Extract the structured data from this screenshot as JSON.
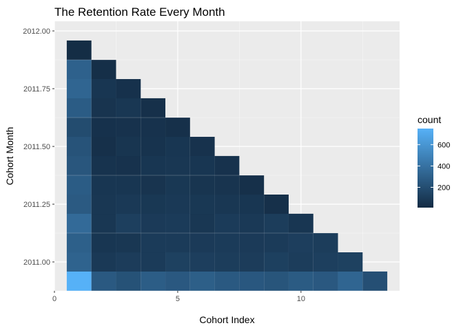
{
  "chart_data": {
    "type": "heatmap",
    "title": "The Retention Rate Every Month",
    "xlabel": "Cohort Index",
    "ylabel": "Cohort Month",
    "xlim": [
      0,
      14
    ],
    "ylim": [
      2010.875,
      2012.0417
    ],
    "x_ticks": [
      0,
      5,
      10
    ],
    "y_ticks": [
      "2011.00",
      "2011.25",
      "2011.50",
      "2011.75",
      "2012.00"
    ],
    "x_tick_values": [
      0,
      5,
      10
    ],
    "y_tick_values": [
      2011.0,
      2011.25,
      2011.5,
      2011.75,
      2012.0
    ],
    "grid": true,
    "legend": {
      "title": "count",
      "placement": "right",
      "labels": [
        "200",
        "400",
        "600"
      ],
      "values": [
        200,
        400,
        600
      ],
      "min": 10,
      "max": 750,
      "low_color": "#132B43",
      "high_color": "#56B1F7"
    },
    "cohort_months": [
      2010.917,
      2011.0,
      2011.083,
      2011.167,
      2011.25,
      2011.333,
      2011.417,
      2011.5,
      2011.583,
      2011.667,
      2011.75,
      2011.833,
      2011.917
    ],
    "rows": [
      [
        750,
        265,
        225,
        285,
        260,
        295,
        265,
        255,
        240,
        275,
        260,
        330,
        210
      ],
      [
        320,
        90,
        105,
        100,
        130,
        115,
        110,
        105,
        125,
        110,
        120,
        130
      ],
      [
        300,
        70,
        75,
        100,
        100,
        95,
        100,
        95,
        100,
        115,
        110
      ],
      [
        360,
        75,
        120,
        95,
        100,
        75,
        100,
        90,
        110,
        70
      ],
      [
        270,
        75,
        90,
        80,
        90,
        80,
        75,
        70,
        40
      ],
      [
        280,
        70,
        70,
        60,
        80,
        65,
        60,
        40
      ],
      [
        250,
        55,
        50,
        70,
        75,
        70,
        50
      ],
      [
        230,
        40,
        65,
        55,
        70,
        50
      ],
      [
        190,
        45,
        50,
        50,
        40
      ],
      [
        280,
        60,
        75,
        40
      ],
      [
        330,
        70,
        45
      ],
      [
        310,
        30
      ],
      [
        20
      ]
    ]
  }
}
